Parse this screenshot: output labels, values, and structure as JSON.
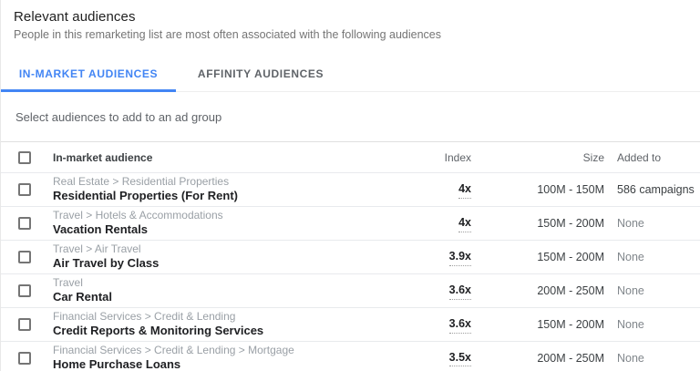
{
  "page": {
    "title": "Relevant audiences",
    "subtitle": "People in this remarketing list are most often associated with the following audiences"
  },
  "tabs": [
    {
      "label": "IN-MARKET AUDIENCES",
      "active": true
    },
    {
      "label": "AFFINITY AUDIENCES",
      "active": false
    }
  ],
  "helper_text": "Select audiences to add to an ad group",
  "table": {
    "columns": {
      "audience": "In-market audience",
      "index": "Index",
      "size": "Size",
      "added_to": "Added to"
    },
    "rows": [
      {
        "category": "Real Estate > Residential Properties",
        "name": "Residential Properties (For Rent)",
        "index": "4x",
        "size": "100M - 150M",
        "added_to": "586 campaigns"
      },
      {
        "category": "Travel > Hotels & Accommodations",
        "name": "Vacation Rentals",
        "index": "4x",
        "size": "150M - 200M",
        "added_to": "None"
      },
      {
        "category": "Travel > Air Travel",
        "name": "Air Travel by Class",
        "index": "3.9x",
        "size": "150M - 200M",
        "added_to": "None"
      },
      {
        "category": "Travel",
        "name": "Car Rental",
        "index": "3.6x",
        "size": "200M - 250M",
        "added_to": "None"
      },
      {
        "category": "Financial Services > Credit & Lending",
        "name": "Credit Reports & Monitoring Services",
        "index": "3.6x",
        "size": "150M - 200M",
        "added_to": "None"
      },
      {
        "category": "Financial Services > Credit & Lending > Mortgage",
        "name": "Home Purchase Loans",
        "index": "3.5x",
        "size": "200M - 250M",
        "added_to": "None"
      }
    ]
  },
  "colors": {
    "accent_blue": "#4285f4",
    "title_text": "#212121",
    "muted_text": "#80868b",
    "category_text": "#9aa0a6",
    "row_border": "#e8eaed"
  }
}
